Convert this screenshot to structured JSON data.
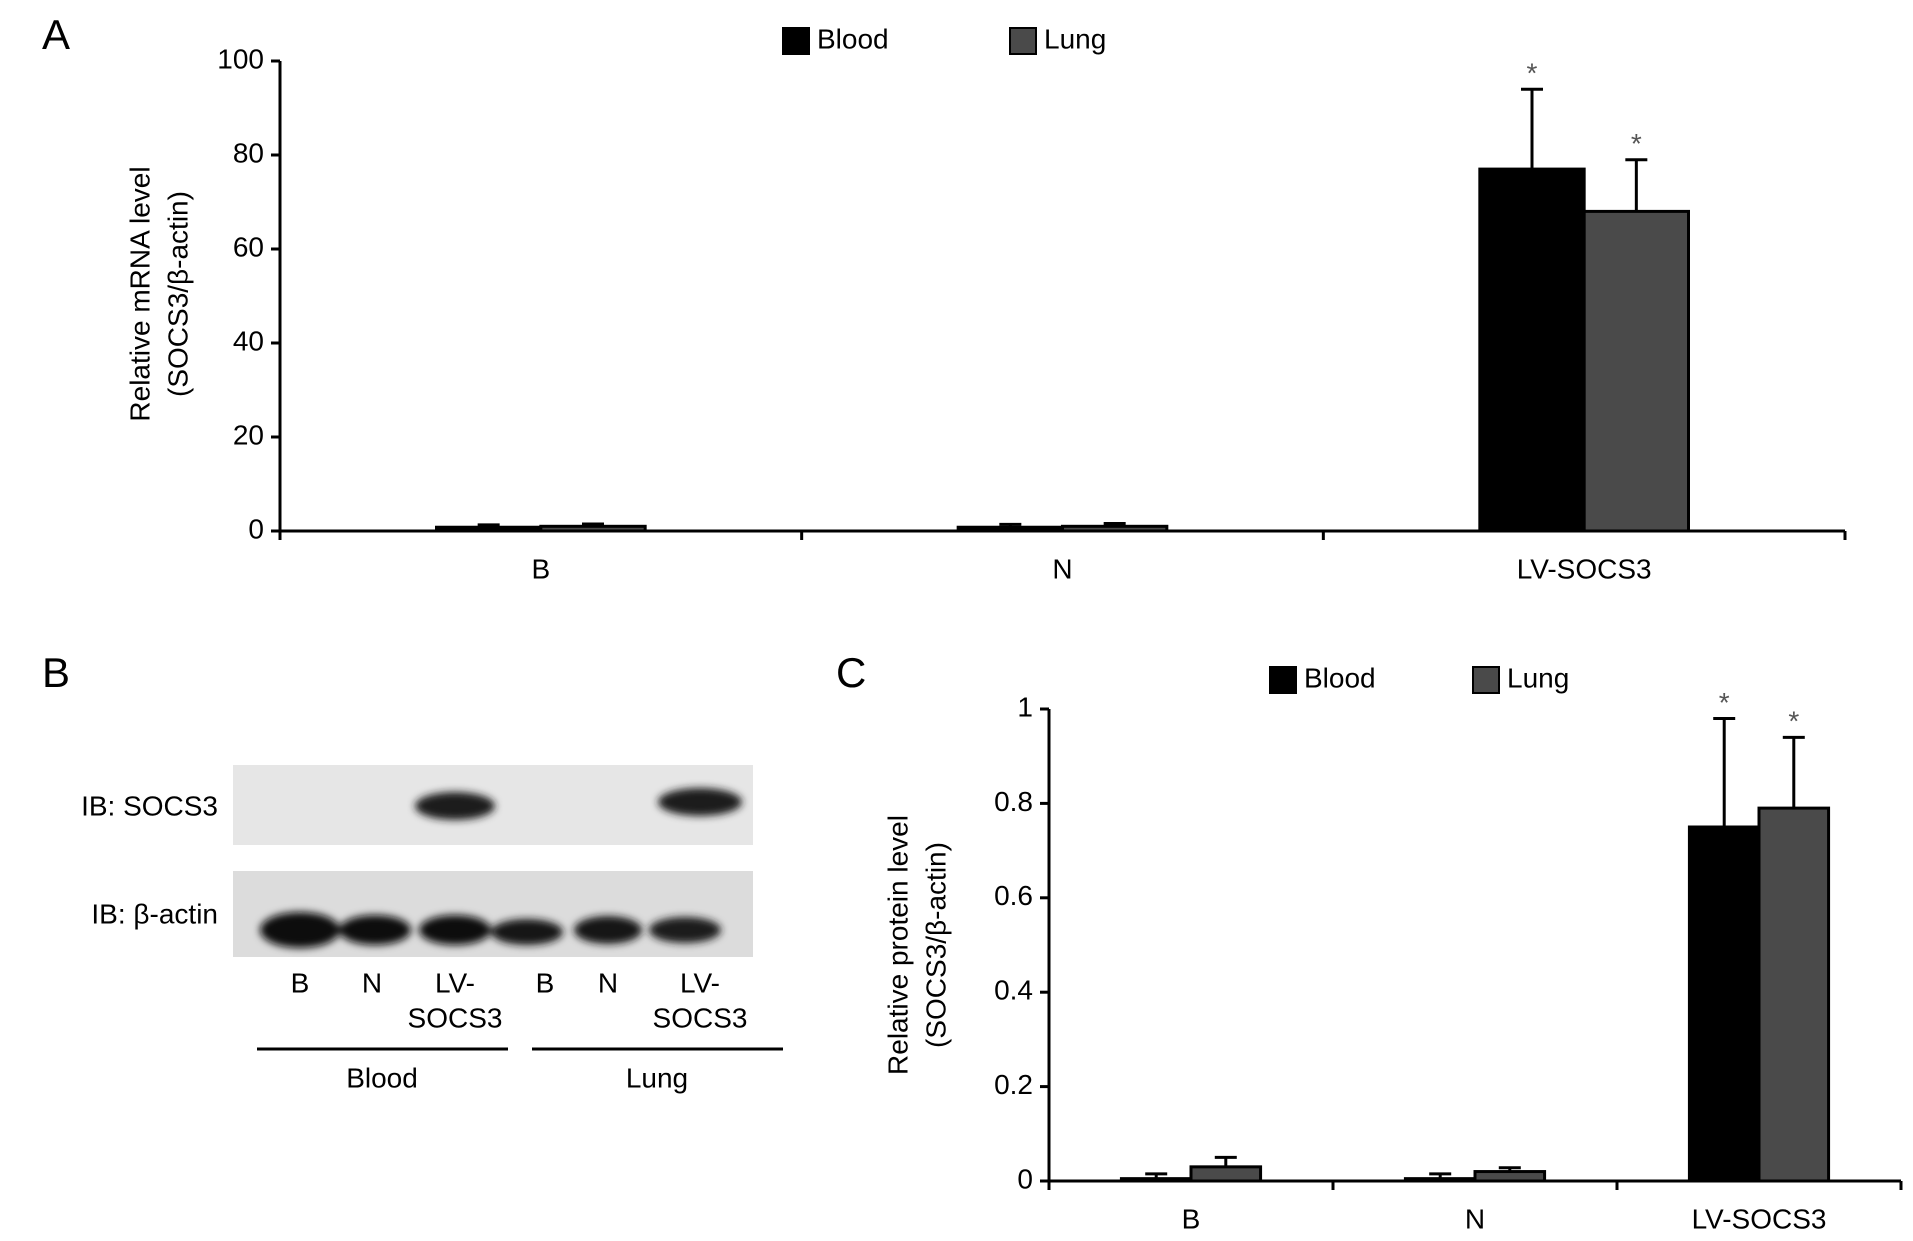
{
  "chart_data": [
    {
      "type": "bar",
      "panel": "A",
      "y_label": [
        "Relative mRNA level",
        "(SOCS3/β-actin)"
      ],
      "categories": [
        "B",
        "N",
        "LV-SOCS3"
      ],
      "series": [
        {
          "name": "Blood",
          "color": "#000000",
          "values": [
            0.8,
            0.8,
            77
          ],
          "errors": [
            0.5,
            0.6,
            17
          ],
          "significance": [
            null,
            null,
            "*"
          ]
        },
        {
          "name": "Lung",
          "color": "#4a4a4a",
          "values": [
            1.0,
            1.0,
            68
          ],
          "errors": [
            0.5,
            0.6,
            11
          ],
          "significance": [
            null,
            null,
            "*"
          ]
        }
      ],
      "ylim": [
        0,
        100
      ],
      "yticks": [
        0,
        20,
        40,
        60,
        80,
        100
      ],
      "grid": false
    },
    {
      "type": "bar",
      "panel": "C",
      "y_label": [
        "Relative protein level",
        "(SOCS3/β-actin)"
      ],
      "categories": [
        "B",
        "N",
        "LV-SOCS3"
      ],
      "series": [
        {
          "name": "Blood",
          "color": "#000000",
          "values": [
            0.005,
            0.005,
            0.75
          ],
          "errors": [
            0.01,
            0.01,
            0.23
          ],
          "significance": [
            null,
            null,
            "*"
          ]
        },
        {
          "name": "Lung",
          "color": "#4a4a4a",
          "values": [
            0.03,
            0.02,
            0.79
          ],
          "errors": [
            0.02,
            0.008,
            0.15
          ],
          "significance": [
            null,
            null,
            "*"
          ]
        }
      ],
      "ylim": [
        0,
        1
      ],
      "yticks": [
        0,
        0.2,
        0.4,
        0.6,
        0.8,
        1
      ],
      "grid": false
    }
  ],
  "blot": {
    "panel": "B",
    "rows": [
      "IB: SOCS3",
      "IB: β-actin"
    ],
    "lanes": [
      [
        "B"
      ],
      [
        "N"
      ],
      [
        "LV-",
        "SOCS3"
      ],
      [
        "B"
      ],
      [
        "N"
      ],
      [
        "LV-",
        "SOCS3"
      ]
    ],
    "groups": [
      "Blood",
      "Lung"
    ]
  }
}
